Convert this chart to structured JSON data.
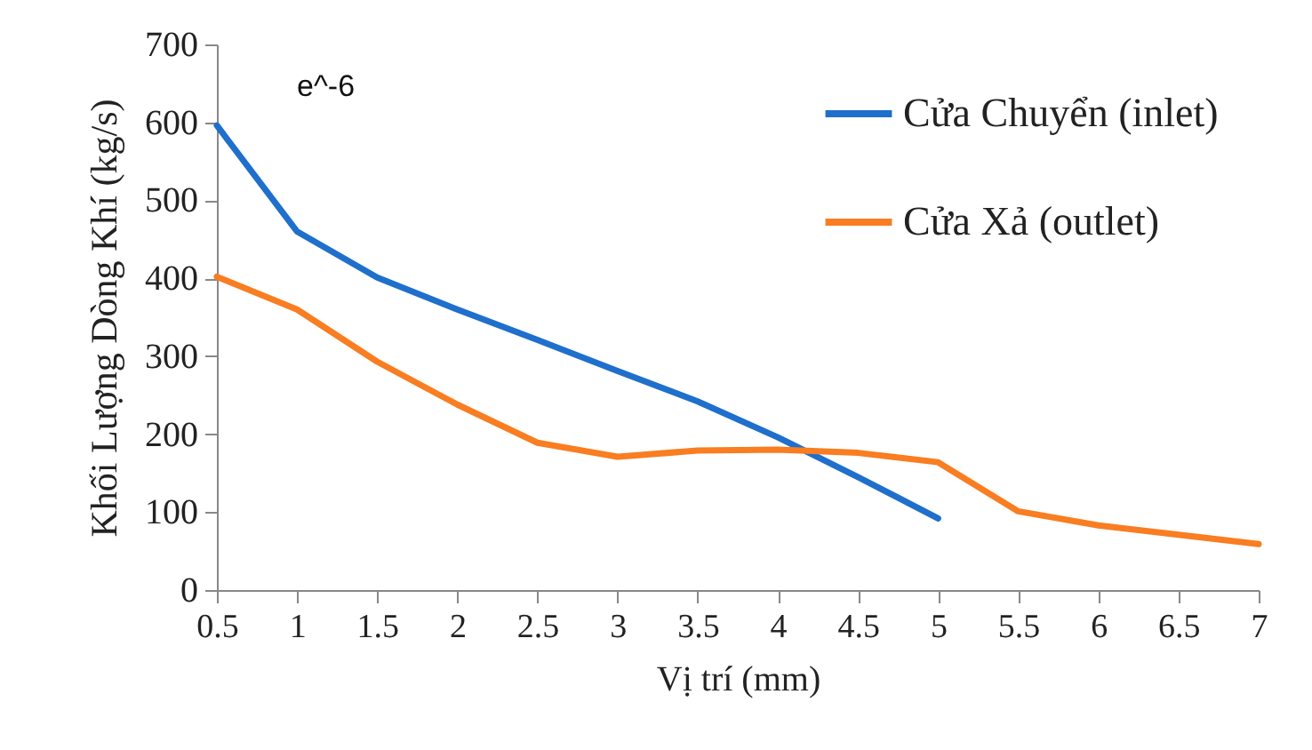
{
  "chart_data": {
    "type": "line",
    "xlabel": "Vị trí (mm)",
    "ylabel": "Khối Lượng Dòng Khí (kg/s)",
    "annotations": [
      "e^-6"
    ],
    "x": [
      0.5,
      1,
      1.5,
      2,
      2.5,
      3,
      3.5,
      4,
      4.5,
      5,
      5.5,
      6,
      6.5,
      7
    ],
    "series": [
      {
        "name": "Cửa Chuyển (inlet)",
        "color": "#1f6fcc",
        "values": [
          596,
          460,
          401,
          360,
          321,
          281,
          242,
          196,
          145,
          92,
          null,
          null,
          null,
          null
        ]
      },
      {
        "name": "Cửa Xả (outlet)",
        "color": "#f97d21",
        "values": [
          402,
          360,
          293,
          238,
          189,
          171,
          179,
          180,
          176,
          164,
          101,
          83,
          71,
          59
        ]
      }
    ],
    "xlim": [
      0.5,
      7
    ],
    "xticks": [
      0.5,
      1,
      1.5,
      2,
      2.5,
      3,
      3.5,
      4,
      4.5,
      5,
      5.5,
      6,
      6.5,
      7
    ],
    "ylim": [
      0,
      700
    ],
    "yticks": [
      0,
      100,
      200,
      300,
      400,
      500,
      600,
      700
    ],
    "grid": false,
    "legend": "top right",
    "marker": "none",
    "line_style": "solid"
  }
}
